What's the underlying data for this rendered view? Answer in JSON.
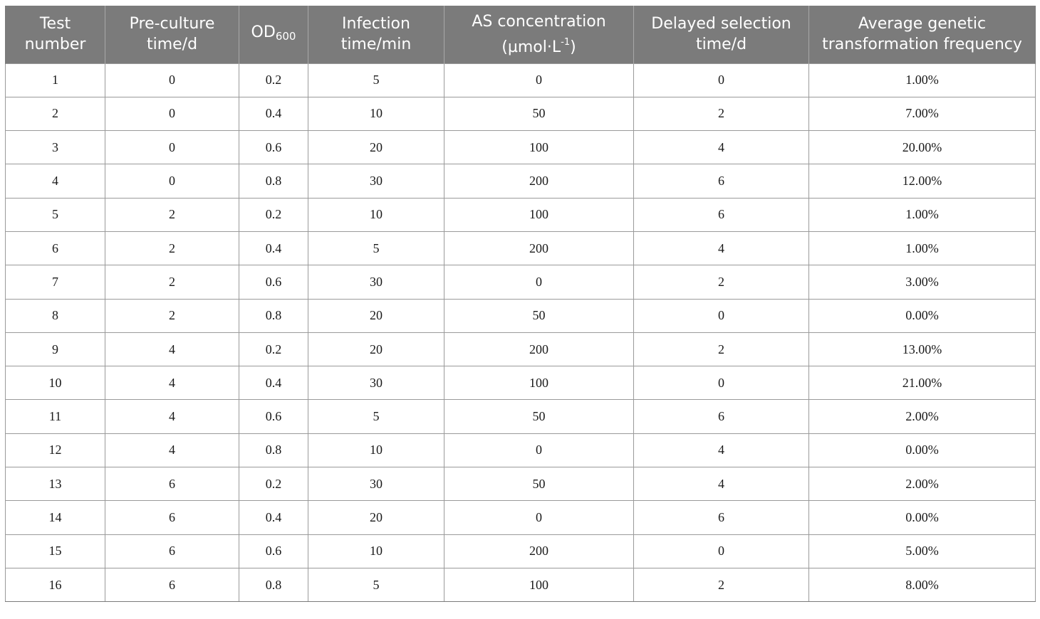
{
  "table": {
    "headers": {
      "test_number": "Test number",
      "preculture": "Pre-culture time/d",
      "od_main": "OD",
      "od_sub": "600",
      "infection": "Infection time/min",
      "as_line1": "AS concentration",
      "as_line2_a": "(µmol·L",
      "as_line2_sup": "-1",
      "as_line2_b": ")",
      "delayed": "Delayed selection time/d",
      "avg_freq": "Average genetic transformation frequency"
    },
    "rows": [
      [
        "1",
        "0",
        "0.2",
        "5",
        "0",
        "0",
        "1.00%"
      ],
      [
        "2",
        "0",
        "0.4",
        "10",
        "50",
        "2",
        "7.00%"
      ],
      [
        "3",
        "0",
        "0.6",
        "20",
        "100",
        "4",
        "20.00%"
      ],
      [
        "4",
        "0",
        "0.8",
        "30",
        "200",
        "6",
        "12.00%"
      ],
      [
        "5",
        "2",
        "0.2",
        "10",
        "100",
        "6",
        "1.00%"
      ],
      [
        "6",
        "2",
        "0.4",
        "5",
        "200",
        "4",
        "1.00%"
      ],
      [
        "7",
        "2",
        "0.6",
        "30",
        "0",
        "2",
        "3.00%"
      ],
      [
        "8",
        "2",
        "0.8",
        "20",
        "50",
        "0",
        "0.00%"
      ],
      [
        "9",
        "4",
        "0.2",
        "20",
        "200",
        "2",
        "13.00%"
      ],
      [
        "10",
        "4",
        "0.4",
        "30",
        "100",
        "0",
        "21.00%"
      ],
      [
        "11",
        "4",
        "0.6",
        "5",
        "50",
        "6",
        "2.00%"
      ],
      [
        "12",
        "4",
        "0.8",
        "10",
        "0",
        "4",
        "0.00%"
      ],
      [
        "13",
        "6",
        "0.2",
        "30",
        "50",
        "4",
        "2.00%"
      ],
      [
        "14",
        "6",
        "0.4",
        "20",
        "0",
        "6",
        "0.00%"
      ],
      [
        "15",
        "6",
        "0.6",
        "10",
        "200",
        "0",
        "5.00%"
      ],
      [
        "16",
        "6",
        "0.8",
        "5",
        "100",
        "2",
        "8.00%"
      ]
    ]
  },
  "colors": {
    "header_bg": "#7b7b7b",
    "header_text": "#ffffff",
    "grid_line": "#9a9a9a"
  }
}
